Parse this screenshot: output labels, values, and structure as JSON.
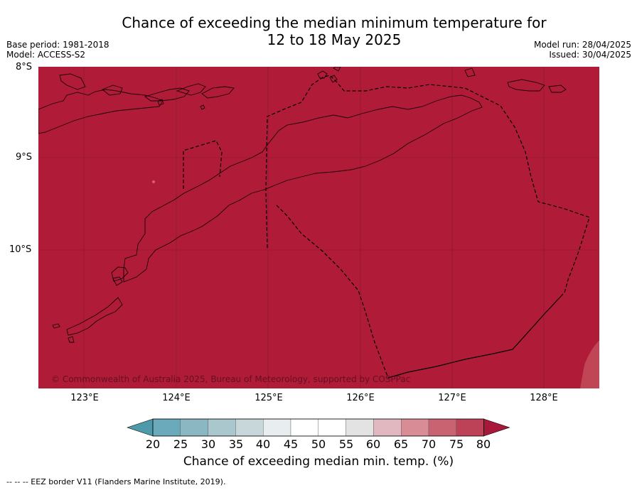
{
  "title_line1": "Chance of exceeding the median minimum temperature for",
  "title_line2": "12 to 18 May 2025",
  "base_period": "Base period: 1981-2018",
  "model": "Model: ACCESS-S2",
  "model_run": "Model run: 28/04/2025",
  "issued": "Issued: 30/04/2025",
  "lat_labels": [
    "8°S",
    "9°S",
    "10°S"
  ],
  "lon_labels": [
    "123°E",
    "124°E",
    "125°E",
    "126°E",
    "127°E",
    "128°E"
  ],
  "copyright": "© Commonwealth of Australia 2025, Bureau of Meteorology, supported by COSPPac",
  "colorbar": {
    "ticks": [
      "20",
      "25",
      "30",
      "35",
      "40",
      "45",
      "50",
      "55",
      "60",
      "65",
      "70",
      "75",
      "80"
    ],
    "colors": [
      "#4e9aaa",
      "#6aaabb",
      "#8bb7c3",
      "#a9c7cd",
      "#c8d7da",
      "#e8eef0",
      "#ffffff",
      "#ffffff",
      "#e3e3e3",
      "#e2b8c0",
      "#d78c96",
      "#c96371",
      "#be4257",
      "#a8183a"
    ],
    "label": "Chance of exceeding median min. temp. (%)"
  },
  "map_fill_color": "#b01c38",
  "footnote": "--  --  -- EEZ border V11 (Flanders Marine Institute, 2019)."
}
